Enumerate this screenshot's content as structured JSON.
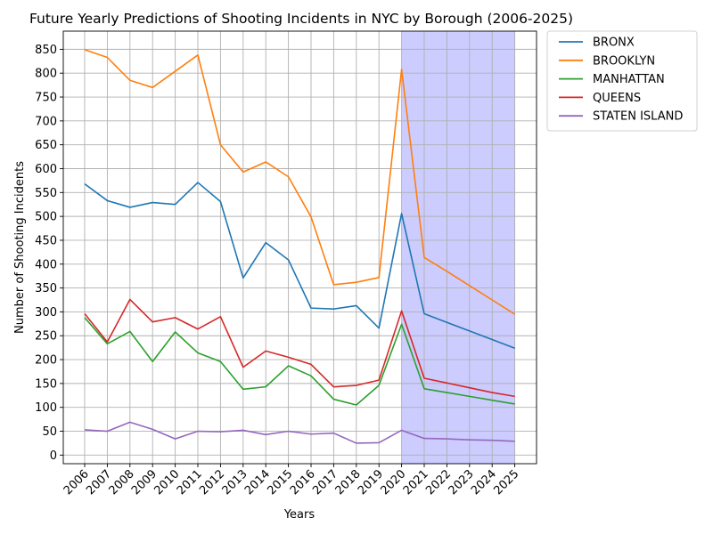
{
  "chart_data": {
    "type": "line",
    "title": "Future Yearly Predictions of Shooting Incidents in NYC by Borough (2006-2025)",
    "xlabel": "Years",
    "ylabel": "Number of Shooting Incidents",
    "x": [
      "2006",
      "2007",
      "2008",
      "2009",
      "2010",
      "2011",
      "2012",
      "2013",
      "2014",
      "2015",
      "2016",
      "2017",
      "2018",
      "2019",
      "2020",
      "2021",
      "2022",
      "2023",
      "2024",
      "2025"
    ],
    "ylim": [
      -18,
      888
    ],
    "yticks": [
      0,
      50,
      100,
      150,
      200,
      250,
      300,
      350,
      400,
      450,
      500,
      550,
      600,
      650,
      700,
      750,
      800,
      850
    ],
    "grid": true,
    "legend_position": "outside-top-right",
    "highlight_region": {
      "x_start": "2020",
      "x_end": "2025",
      "color": "#ccccff"
    },
    "series": [
      {
        "name": "BRONX",
        "color": "#1f77b4",
        "values": [
          568,
          533,
          519,
          529,
          525,
          571,
          531,
          371,
          445,
          409,
          308,
          306,
          313,
          266,
          506,
          296,
          278,
          260,
          242,
          224
        ]
      },
      {
        "name": "BROOKLYN",
        "color": "#ff7f0e",
        "values": [
          849,
          833,
          785,
          770,
          804,
          838,
          650,
          593,
          614,
          583,
          499,
          357,
          362,
          372,
          808,
          414,
          385,
          355,
          325,
          295
        ]
      },
      {
        "name": "MANHATTAN",
        "color": "#2ca02c",
        "values": [
          288,
          233,
          259,
          196,
          258,
          214,
          196,
          138,
          143,
          187,
          166,
          117,
          105,
          146,
          274,
          139,
          131,
          123,
          115,
          107
        ]
      },
      {
        "name": "QUEENS",
        "color": "#d62728",
        "values": [
          296,
          237,
          326,
          279,
          288,
          264,
          290,
          184,
          218,
          205,
          190,
          143,
          146,
          157,
          302,
          161,
          151,
          141,
          131,
          123
        ]
      },
      {
        "name": "STATEN ISLAND",
        "color": "#9467bd",
        "values": [
          53,
          50,
          69,
          54,
          34,
          50,
          49,
          52,
          43,
          50,
          44,
          46,
          25,
          26,
          52,
          35,
          34,
          32,
          31,
          29
        ]
      }
    ]
  }
}
